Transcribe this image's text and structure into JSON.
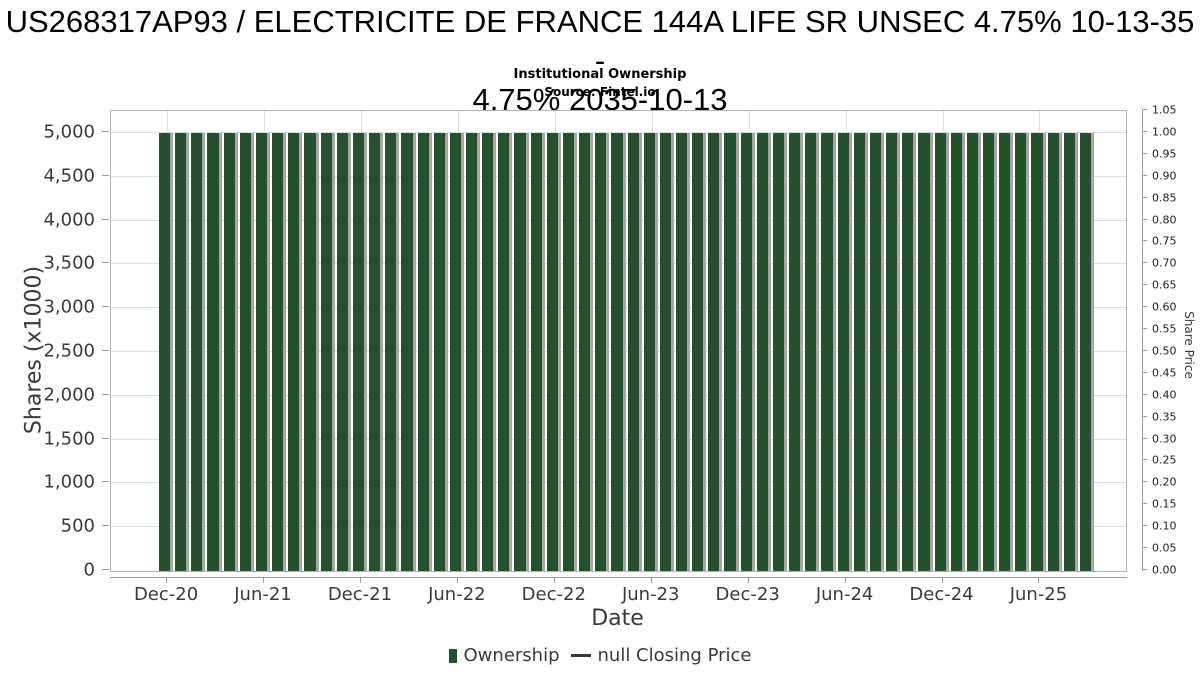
{
  "chart_data": {
    "type": "bar",
    "title": "US268317AP93 / ELECTRICITE DE FRANCE 144A LIFE SR UNSEC 4.75% 10-13-35 - 4.75% 2035-10-13",
    "title_line1": "US268317AP93 / ELECTRICITE DE FRANCE 144A LIFE SR UNSEC 4.75% 10-13-35 -",
    "title_line2": "4.75% 2035-10-13",
    "subtitle": "Institutional Ownership",
    "source": "Source: Fintel.io",
    "xlabel": "Date",
    "ylabel_left": "Shares (x1000)",
    "ylabel_right": "Share Price",
    "ylim_left": [
      0,
      5250
    ],
    "ylim_right": [
      0,
      1.05
    ],
    "grid": true,
    "legend_position": "bottom",
    "colors": {
      "bar_fill": "#24502b",
      "bar_edge": "#a6a6a6",
      "grid_line": "#dedede",
      "axis_line": "#9a9a9a",
      "tick_text": "#3a3a3a",
      "legend_line": "#3a3a3a"
    },
    "categories": [
      "Dec-20",
      "Jan-21",
      "Feb-21",
      "Mar-21",
      "Apr-21",
      "May-21",
      "Jun-21",
      "Jul-21",
      "Aug-21",
      "Sep-21",
      "Oct-21",
      "Nov-21",
      "Dec-21",
      "Jan-22",
      "Feb-22",
      "Mar-22",
      "Apr-22",
      "May-22",
      "Jun-22",
      "Jul-22",
      "Aug-22",
      "Sep-22",
      "Oct-22",
      "Nov-22",
      "Dec-22",
      "Jan-23",
      "Feb-23",
      "Mar-23",
      "Apr-23",
      "May-23",
      "Jun-23",
      "Jul-23",
      "Aug-23",
      "Sep-23",
      "Oct-23",
      "Nov-23",
      "Dec-23",
      "Jan-24",
      "Feb-24",
      "Mar-24",
      "Apr-24",
      "May-24",
      "Jun-24",
      "Jul-24",
      "Aug-24",
      "Sep-24",
      "Oct-24",
      "Nov-24",
      "Dec-24",
      "Jan-25",
      "Feb-25",
      "Mar-25",
      "Apr-25",
      "May-25",
      "Jun-25",
      "Jul-25",
      "Aug-25",
      "Sep-25"
    ],
    "series": [
      {
        "name": "Ownership",
        "type": "bar",
        "color": "#24502b",
        "values": [
          5000,
          5000,
          5000,
          5000,
          5000,
          5000,
          5000,
          5000,
          5000,
          5000,
          5000,
          5000,
          5000,
          5000,
          5000,
          5000,
          5000,
          5000,
          5000,
          5000,
          5000,
          5000,
          5000,
          5000,
          5000,
          5000,
          5000,
          5000,
          5000,
          5000,
          5000,
          5000,
          5000,
          5000,
          5000,
          5000,
          5000,
          5000,
          5000,
          5000,
          5000,
          5000,
          5000,
          5000,
          5000,
          5000,
          5000,
          5000,
          5000,
          5000,
          5000,
          5000,
          5000,
          5000,
          5000,
          5000,
          5000,
          5000
        ]
      },
      {
        "name": "null Closing Price",
        "type": "line",
        "color": "#3a3a3a",
        "values": []
      }
    ],
    "x_ticks": [
      {
        "index": 0,
        "label": "Dec-20"
      },
      {
        "index": 6,
        "label": "Jun-21"
      },
      {
        "index": 12,
        "label": "Dec-21"
      },
      {
        "index": 18,
        "label": "Jun-22"
      },
      {
        "index": 24,
        "label": "Dec-22"
      },
      {
        "index": 30,
        "label": "Jun-23"
      },
      {
        "index": 36,
        "label": "Dec-23"
      },
      {
        "index": 42,
        "label": "Jun-24"
      },
      {
        "index": 48,
        "label": "Dec-24"
      },
      {
        "index": 54,
        "label": "Jun-25"
      }
    ],
    "yticks_left": [
      {
        "value": 0,
        "label": "0"
      },
      {
        "value": 500,
        "label": "500"
      },
      {
        "value": 1000,
        "label": "1,000"
      },
      {
        "value": 1500,
        "label": "1,500"
      },
      {
        "value": 2000,
        "label": "2,000"
      },
      {
        "value": 2500,
        "label": "2,500"
      },
      {
        "value": 3000,
        "label": "3,000"
      },
      {
        "value": 3500,
        "label": "3,500"
      },
      {
        "value": 4000,
        "label": "4,000"
      },
      {
        "value": 4500,
        "label": "4,500"
      },
      {
        "value": 5000,
        "label": "5,000"
      }
    ],
    "yticks_right": [
      {
        "value": 0.0,
        "label": "0.00"
      },
      {
        "value": 0.05,
        "label": "0.05"
      },
      {
        "value": 0.1,
        "label": "0.10"
      },
      {
        "value": 0.15,
        "label": "0.15"
      },
      {
        "value": 0.2,
        "label": "0.20"
      },
      {
        "value": 0.25,
        "label": "0.25"
      },
      {
        "value": 0.3,
        "label": "0.30"
      },
      {
        "value": 0.35,
        "label": "0.35"
      },
      {
        "value": 0.4,
        "label": "0.40"
      },
      {
        "value": 0.45,
        "label": "0.45"
      },
      {
        "value": 0.5,
        "label": "0.50"
      },
      {
        "value": 0.55,
        "label": "0.55"
      },
      {
        "value": 0.6,
        "label": "0.60"
      },
      {
        "value": 0.65,
        "label": "0.65"
      },
      {
        "value": 0.7,
        "label": "0.70"
      },
      {
        "value": 0.75,
        "label": "0.75"
      },
      {
        "value": 0.8,
        "label": "0.80"
      },
      {
        "value": 0.85,
        "label": "0.85"
      },
      {
        "value": 0.9,
        "label": "0.90"
      },
      {
        "value": 0.95,
        "label": "0.95"
      },
      {
        "value": 1.0,
        "label": "1.00"
      },
      {
        "value": 1.05,
        "label": "1.05"
      }
    ],
    "legend": [
      {
        "label": "Ownership",
        "symbol": "bar-swatch"
      },
      {
        "label": "null Closing Price",
        "symbol": "line-swatch"
      }
    ]
  }
}
